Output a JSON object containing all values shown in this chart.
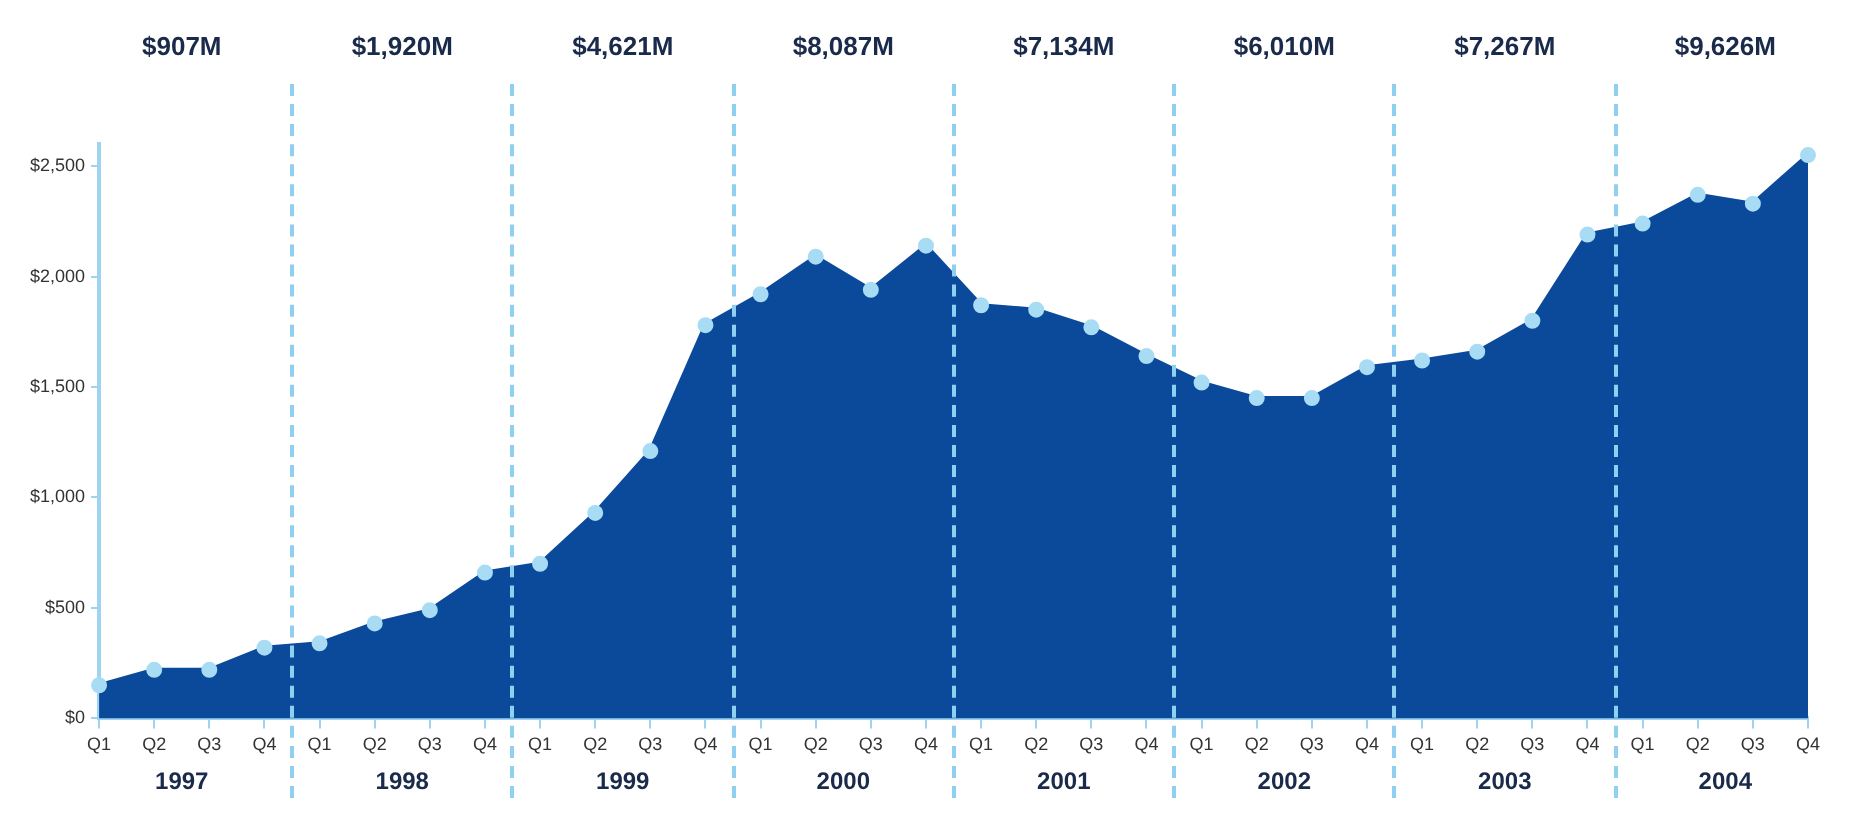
{
  "chart_data": {
    "type": "area",
    "categories": [
      "Q1",
      "Q2",
      "Q3",
      "Q4",
      "Q1",
      "Q2",
      "Q3",
      "Q4",
      "Q1",
      "Q2",
      "Q3",
      "Q4",
      "Q1",
      "Q2",
      "Q3",
      "Q4",
      "Q1",
      "Q2",
      "Q3",
      "Q4",
      "Q1",
      "Q2",
      "Q3",
      "Q4",
      "Q1",
      "Q2",
      "Q3",
      "Q4",
      "Q1",
      "Q2",
      "Q3",
      "Q4"
    ],
    "series": [
      {
        "color": "#0b4a9b",
        "values": [
          150,
          220,
          220,
          320,
          340,
          430,
          490,
          660,
          700,
          930,
          1210,
          1780,
          1920,
          2090,
          1940,
          2140,
          1870,
          1850,
          1770,
          1640,
          1520,
          1450,
          1450,
          1590,
          1620,
          1660,
          1800,
          2190,
          2240,
          2370,
          2330,
          2550
        ]
      }
    ],
    "ylim": [
      0,
      2600
    ],
    "yticks": [
      {
        "value": 0,
        "label": "$0"
      },
      {
        "value": 500,
        "label": "$500"
      },
      {
        "value": 1000,
        "label": "$1,000"
      },
      {
        "value": 1500,
        "label": "$1,500"
      },
      {
        "value": 2000,
        "label": "$2,000"
      },
      {
        "value": 2500,
        "label": "$2,500"
      }
    ],
    "annotations": [
      "$907M",
      "$1,920M",
      "$4,621M",
      "$8,087M",
      "$7,134M",
      "$6,010M",
      "$7,267M",
      "$9,626M",
      "1997",
      "1998",
      "1999",
      "2000",
      "2001",
      "2002",
      "2003",
      "2004"
    ],
    "grid": false,
    "legend": false,
    "marker": "circle"
  }
}
